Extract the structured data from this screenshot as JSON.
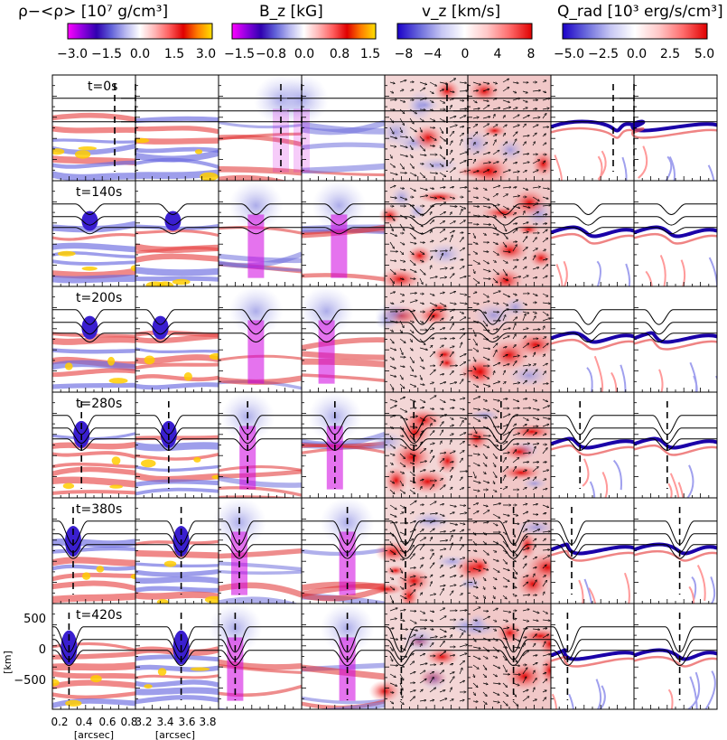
{
  "colorbars": [
    {
      "label": "ρ−<ρ> [10⁷ g/cm³]",
      "ticks": [
        "−3.0",
        "−1.5",
        "0.0",
        "1.5",
        "3.0"
      ],
      "stops": [
        "#ff00ff",
        "#9000e0",
        "#3000b0",
        "#6060d8",
        "#b8b8f0",
        "#ffffff",
        "#ffb8b8",
        "#ff6060",
        "#e00000",
        "#ff8000",
        "#ffe000"
      ]
    },
    {
      "label": "B_z [kG]",
      "ticks": [
        "−1.5",
        "−0.8",
        "0.0",
        "0.8",
        "1.5"
      ],
      "stops": [
        "#ff00ff",
        "#9000e0",
        "#3000b0",
        "#6060d8",
        "#b8b8f0",
        "#ffffff",
        "#ffb8b8",
        "#ff6060",
        "#e00000",
        "#ff8000",
        "#ffe000"
      ]
    },
    {
      "label": "v_z [km/s]",
      "ticks": [
        "−8",
        "−4",
        "0",
        "4",
        "8"
      ],
      "stops": [
        "#1a00c8",
        "#6c6cdc",
        "#c8c8f4",
        "#ffffff",
        "#ffc8c8",
        "#ff6c6c",
        "#e00000"
      ]
    },
    {
      "label": "Q_rad [10³ erg/s/cm³]",
      "ticks": [
        "−5.0",
        "−2.5",
        "0.0",
        "2.5",
        "5.0"
      ],
      "stops": [
        "#1a00c8",
        "#6c6cdc",
        "#c8c8f4",
        "#ffffff",
        "#ffc8c8",
        "#ff6c6c",
        "#e00000"
      ]
    }
  ],
  "times": [
    "t=0s",
    "t=140s",
    "t=200s",
    "t=280s",
    "t=380s",
    "t=420s"
  ],
  "y_axis": {
    "label": "[km]",
    "ticks": [
      "500",
      "0",
      "−500"
    ]
  },
  "x_axis_left": {
    "label": "[arcsec]",
    "ticks": [
      "0.2",
      "0.4",
      "0.6",
      "0.8"
    ]
  },
  "x_axis_right": {
    "label": "[arcsec]",
    "ticks": [
      "3.2",
      "3.4",
      "3.6",
      "3.8"
    ]
  }
}
